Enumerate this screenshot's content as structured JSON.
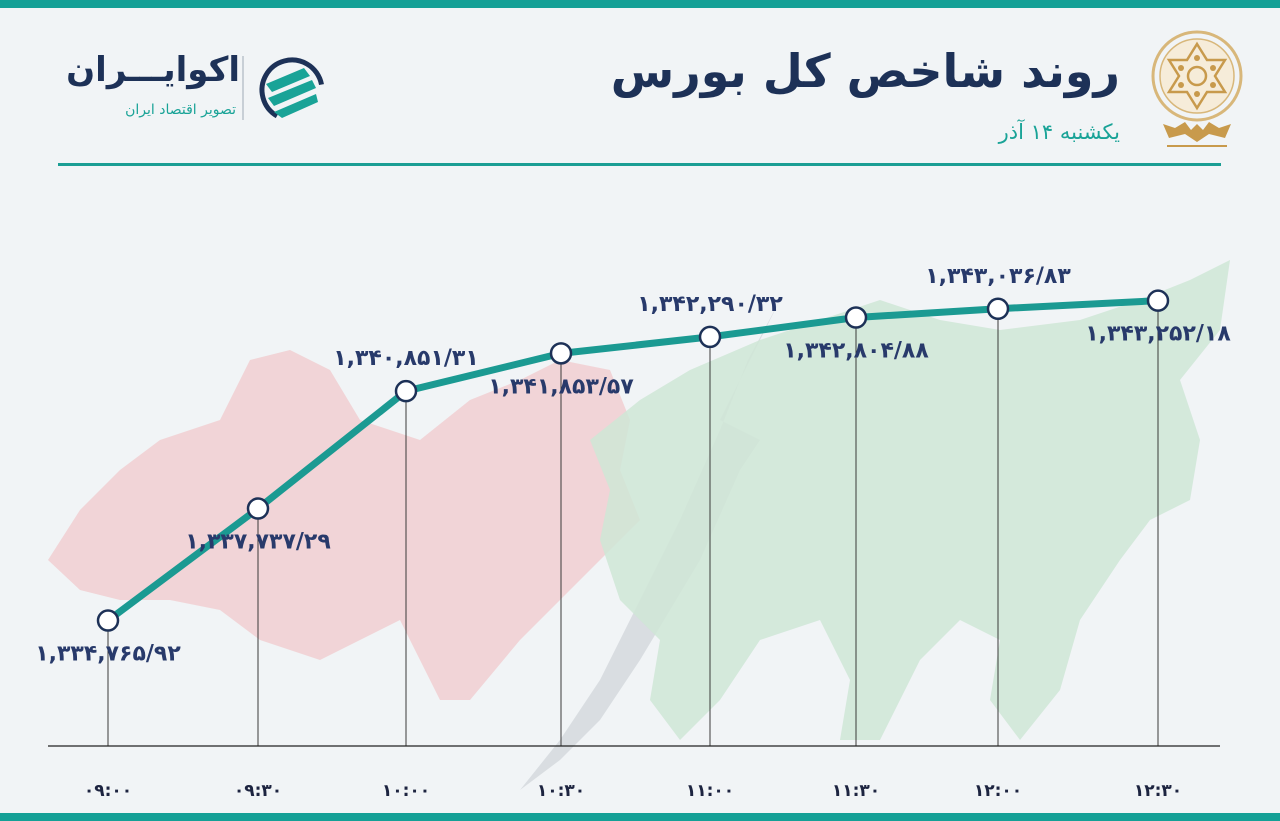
{
  "header": {
    "title": "روند شاخص کل بورس",
    "subtitle": "یکشنبه ۱۴ آذر"
  },
  "brand": {
    "name": "اکوایـــران",
    "tagline": "تصویر اقتصاد ایران"
  },
  "colors": {
    "accent": "#14a096",
    "line": "#1b9a92",
    "title": "#1d3157",
    "label": "#283a6b"
  },
  "icons": [
    "tehran-stock-exchange-emblem",
    "ecoiran-logo-icon",
    "bear-silhouette",
    "bull-silhouette"
  ],
  "chart_data": {
    "type": "line",
    "title": "روند شاخص کل بورس",
    "x": [
      "۰۹:۰۰",
      "۰۹:۳۰",
      "۱۰:۰۰",
      "۱۰:۳۰",
      "۱۱:۰۰",
      "۱۱:۳۰",
      "۱۲:۰۰",
      "۱۲:۳۰"
    ],
    "values": [
      1334765.92,
      1337737.29,
      1340851.31,
      1341853.57,
      1342290.32,
      1342804.88,
      1343036.83,
      1343252.18
    ],
    "value_labels": [
      "۱,۳۳۴,۷۶۵/۹۲",
      "۱,۳۳۷,۷۳۷/۲۹",
      "۱,۳۴۰,۸۵۱/۳۱",
      "۱,۳۴۱,۸۵۳/۵۷",
      "۱,۳۴۲,۲۹۰/۳۲",
      "۱,۳۴۲,۸۰۴/۸۸",
      "۱,۳۴۳,۰۳۶/۸۳",
      "۱,۳۴۳,۲۵۲/۱۸"
    ],
    "ylim": [
      1334250,
      1343800
    ],
    "grid": false,
    "legend": "none"
  }
}
